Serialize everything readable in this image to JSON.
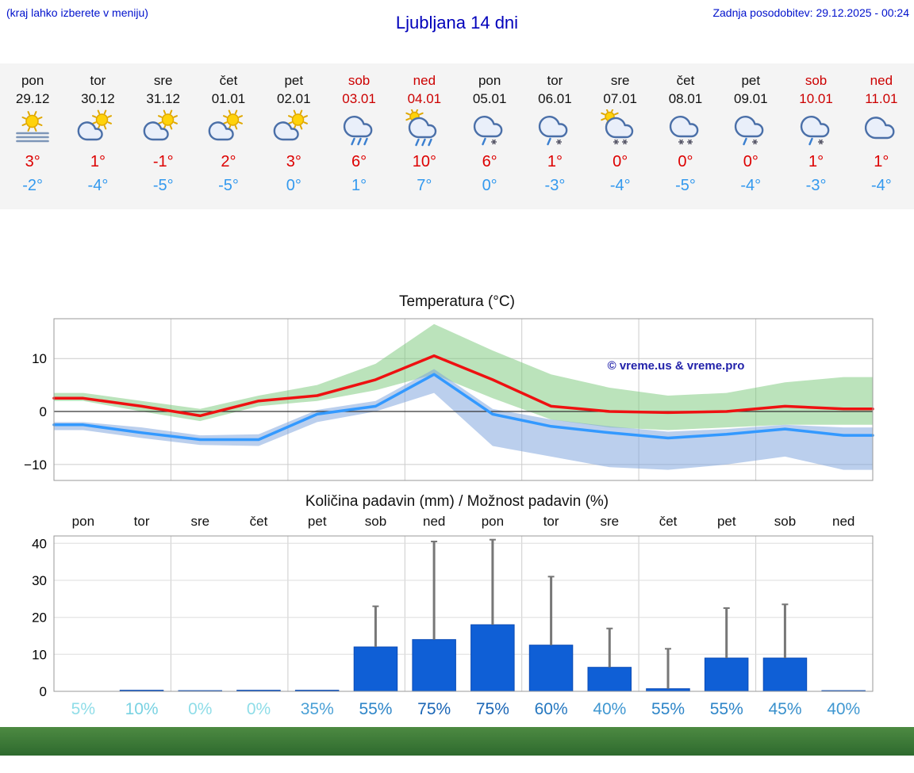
{
  "header": {
    "note_left": "(kraj lahko izberete v meniju)",
    "title": "Ljubljana 14 dni",
    "updated": "Zadnja posodobitev: 29.12.2025 - 00:24"
  },
  "forecast_days": [
    {
      "name": "pon",
      "date": "29.12",
      "weekend": false,
      "icon": "sun-fog",
      "tmax": "3°",
      "tmin": "-2°"
    },
    {
      "name": "tor",
      "date": "30.12",
      "weekend": false,
      "icon": "sun-cloud",
      "tmax": "1°",
      "tmin": "-4°"
    },
    {
      "name": "sre",
      "date": "31.12",
      "weekend": false,
      "icon": "sun-cloud",
      "tmax": "-1°",
      "tmin": "-5°"
    },
    {
      "name": "čet",
      "date": "01.01",
      "weekend": false,
      "icon": "sun-cloud",
      "tmax": "2°",
      "tmin": "-5°"
    },
    {
      "name": "pet",
      "date": "02.01",
      "weekend": false,
      "icon": "sun-cloud",
      "tmax": "3°",
      "tmin": "0°"
    },
    {
      "name": "sob",
      "date": "03.01",
      "weekend": true,
      "icon": "rain",
      "tmax": "6°",
      "tmin": "1°"
    },
    {
      "name": "ned",
      "date": "04.01",
      "weekend": true,
      "icon": "sun-rain",
      "tmax": "10°",
      "tmin": "7°"
    },
    {
      "name": "pon",
      "date": "05.01",
      "weekend": false,
      "icon": "sleet",
      "tmax": "6°",
      "tmin": "0°"
    },
    {
      "name": "tor",
      "date": "06.01",
      "weekend": false,
      "icon": "sleet",
      "tmax": "1°",
      "tmin": "-3°"
    },
    {
      "name": "sre",
      "date": "07.01",
      "weekend": false,
      "icon": "sun-snow",
      "tmax": "0°",
      "tmin": "-4°"
    },
    {
      "name": "čet",
      "date": "08.01",
      "weekend": false,
      "icon": "snow",
      "tmax": "0°",
      "tmin": "-5°"
    },
    {
      "name": "pet",
      "date": "09.01",
      "weendend": false,
      "weekend": false,
      "icon": "sleet",
      "tmax": "0°",
      "tmin": "-4°"
    },
    {
      "name": "sob",
      "date": "10.01",
      "weekend": true,
      "icon": "sleet",
      "tmax": "1°",
      "tmin": "-3°"
    },
    {
      "name": "ned",
      "date": "11.01",
      "weekend": true,
      "icon": "cloud",
      "tmax": "1°",
      "tmin": "-4°"
    }
  ],
  "chart_data": [
    {
      "type": "line",
      "title": "Temperatura (°C)",
      "watermark": "© vreme.us & vreme.pro",
      "watermark_color": "#2222aa",
      "x_labels": [
        "pon 29.12",
        "tor 30.12",
        "sre 31.12",
        "čet 01.01",
        "pet 02.01",
        "sob 03.01",
        "ned 04.01",
        "pon 05.01",
        "tor 06.01",
        "sre 07.01",
        "čet 08.01",
        "pet 09.01",
        "sob 10.01",
        "ned 11.01"
      ],
      "ylim": [
        -13,
        17.5
      ],
      "yticks": [
        -10,
        0,
        10
      ],
      "grid": true,
      "series": [
        {
          "name": "najvišja temperatura",
          "color": "#ee1111",
          "values": [
            2.5,
            1,
            -0.8,
            2,
            3,
            6,
            10.5,
            6,
            1,
            0,
            -0.2,
            0,
            1,
            0.5
          ]
        },
        {
          "name": "najnižja temperatura",
          "color": "#3399ff",
          "values": [
            -2.5,
            -4,
            -5.3,
            -5.3,
            -0.5,
            1,
            7,
            -0.5,
            -2.8,
            -4,
            -5,
            -4.3,
            -3.3,
            -4.5
          ]
        }
      ],
      "bands": [
        {
          "name": "razpon najvišje temperature",
          "color": "rgba(120,200,120,0.5)",
          "upper": [
            3.5,
            2,
            0.5,
            3,
            5,
            9,
            16.5,
            11.5,
            7,
            4.5,
            3,
            3.5,
            5.5,
            6.5
          ],
          "lower": [
            2,
            0,
            -1.8,
            1,
            2,
            4,
            7,
            2.5,
            -1.5,
            -3,
            -3.5,
            -3,
            -2.5,
            -2.5
          ]
        },
        {
          "name": "razpon najnižje temperature",
          "color": "rgba(120,160,220,0.5)",
          "upper": [
            -2,
            -3,
            -4.5,
            -4.3,
            0.3,
            2,
            8,
            0.5,
            -1.5,
            -2.8,
            -3.8,
            -3.3,
            -2.5,
            -3
          ],
          "lower": [
            -3.5,
            -5,
            -6.3,
            -6.5,
            -2,
            0,
            3.5,
            -6.5,
            -8.5,
            -10.5,
            -11,
            -10,
            -8.5,
            -11
          ]
        }
      ]
    },
    {
      "type": "bar",
      "title": "Količina padavin (mm) / Možnost padavin (%)",
      "categories": [
        "pon",
        "tor",
        "sre",
        "čet",
        "pet",
        "sob",
        "ned",
        "pon",
        "tor",
        "sre",
        "čet",
        "pet",
        "sob",
        "ned"
      ],
      "values_mm": [
        0,
        0.3,
        0.2,
        0.3,
        0.3,
        12,
        14,
        18,
        12.5,
        6.5,
        0.7,
        9,
        9,
        0.2
      ],
      "whisker_max_mm": [
        0,
        0.8,
        0.5,
        0.8,
        0.8,
        23,
        40.5,
        41,
        31,
        17,
        11.5,
        22.5,
        23.5,
        0.6
      ],
      "probabilities_pct": [
        "5%",
        "10%",
        "0%",
        "0%",
        "35%",
        "55%",
        "75%",
        "75%",
        "60%",
        "40%",
        "55%",
        "55%",
        "45%",
        "40%"
      ],
      "probability_colors": [
        "#8fdde8",
        "#79d2e2",
        "#8fdde8",
        "#8fdde8",
        "#4aa0d6",
        "#2d85c8",
        "#1b66b6",
        "#1b66b6",
        "#2678c0",
        "#3f97d1",
        "#2d85c8",
        "#2d85c8",
        "#3890cc",
        "#3f97d1"
      ],
      "bar_color": "#0f5fd6",
      "whisker_color": "#777777",
      "ylim": [
        0,
        42
      ],
      "yticks": [
        0,
        10,
        20,
        30,
        40
      ],
      "grid": true
    }
  ]
}
